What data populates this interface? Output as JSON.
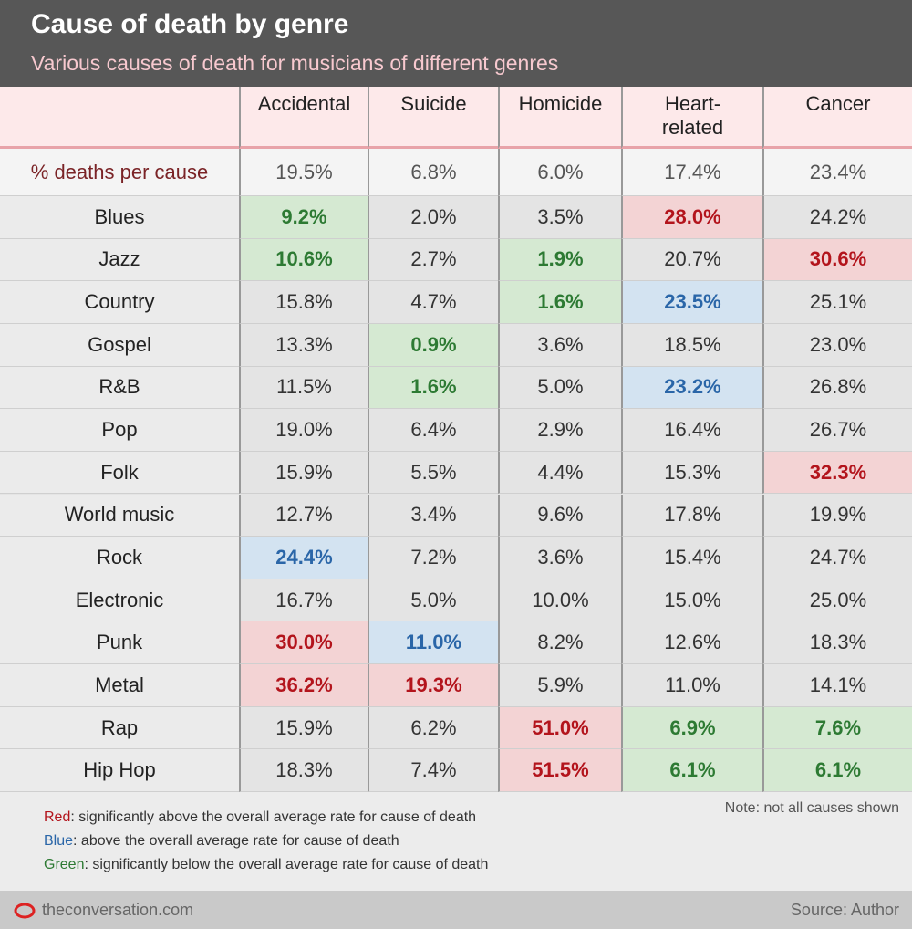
{
  "header": {
    "title": "Cause of death by genre",
    "subtitle": "Various causes of death for musicians of different genres"
  },
  "table": {
    "columns": [
      "Accidental",
      "Suicide",
      "Homicide",
      "Heart-\nrelated",
      "Cancer"
    ],
    "average": {
      "label": "% deaths per cause",
      "values": [
        "19.5%",
        "6.8%",
        "6.0%",
        "17.4%",
        "23.4%"
      ]
    },
    "rows": [
      {
        "genre": "Blues",
        "values": [
          "9.2%",
          "2.0%",
          "3.5%",
          "28.0%",
          "24.2%"
        ],
        "highlight": [
          "green",
          null,
          null,
          "red",
          null
        ]
      },
      {
        "genre": "Jazz",
        "values": [
          "10.6%",
          "2.7%",
          "1.9%",
          "20.7%",
          "30.6%"
        ],
        "highlight": [
          "green",
          null,
          "green",
          null,
          "red"
        ]
      },
      {
        "genre": "Country",
        "values": [
          "15.8%",
          "4.7%",
          "1.6%",
          "23.5%",
          "25.1%"
        ],
        "highlight": [
          null,
          null,
          "green",
          "blue",
          null
        ]
      },
      {
        "genre": "Gospel",
        "values": [
          "13.3%",
          "0.9%",
          "3.6%",
          "18.5%",
          "23.0%"
        ],
        "highlight": [
          null,
          "green",
          null,
          null,
          null
        ]
      },
      {
        "genre": "R&B",
        "values": [
          "11.5%",
          "1.6%",
          "5.0%",
          "23.2%",
          "26.8%"
        ],
        "highlight": [
          null,
          "green",
          null,
          "blue",
          null
        ]
      },
      {
        "genre": "Pop",
        "values": [
          "19.0%",
          "6.4%",
          "2.9%",
          "16.4%",
          "26.7%"
        ],
        "highlight": [
          null,
          null,
          null,
          null,
          null
        ]
      },
      {
        "genre": "Folk",
        "values": [
          "15.9%",
          "5.5%",
          "4.4%",
          "15.3%",
          "32.3%"
        ],
        "highlight": [
          null,
          null,
          null,
          null,
          "red"
        ]
      },
      {
        "genre": "World music",
        "values": [
          "12.7%",
          "3.4%",
          "9.6%",
          "17.8%",
          "19.9%"
        ],
        "highlight": [
          null,
          null,
          null,
          null,
          null
        ]
      },
      {
        "genre": "Rock",
        "values": [
          "24.4%",
          "7.2%",
          "3.6%",
          "15.4%",
          "24.7%"
        ],
        "highlight": [
          "blue",
          null,
          null,
          null,
          null
        ]
      },
      {
        "genre": "Electronic",
        "values": [
          "16.7%",
          "5.0%",
          "10.0%",
          "15.0%",
          "25.0%"
        ],
        "highlight": [
          null,
          null,
          null,
          null,
          null
        ]
      },
      {
        "genre": "Punk",
        "values": [
          "30.0%",
          "11.0%",
          "8.2%",
          "12.6%",
          "18.3%"
        ],
        "highlight": [
          "red",
          "blue",
          null,
          null,
          null
        ]
      },
      {
        "genre": "Metal",
        "values": [
          "36.2%",
          "19.3%",
          "5.9%",
          "11.0%",
          "14.1%"
        ],
        "highlight": [
          "red",
          "red",
          null,
          null,
          null
        ]
      },
      {
        "genre": "Rap",
        "values": [
          "15.9%",
          "6.2%",
          "51.0%",
          "6.9%",
          "7.6%"
        ],
        "highlight": [
          null,
          null,
          "red",
          "green",
          "green"
        ]
      },
      {
        "genre": "Hip Hop",
        "values": [
          "18.3%",
          "7.4%",
          "51.5%",
          "6.1%",
          "6.1%"
        ],
        "highlight": [
          null,
          null,
          "red",
          "green",
          "green"
        ]
      }
    ]
  },
  "legend": [
    {
      "key": "Red",
      "text": ": significantly above the overall average rate for cause of death",
      "color": "red"
    },
    {
      "key": "Blue",
      "text": ": above the overall average rate for cause of death",
      "color": "blue"
    },
    {
      "key": "Green",
      "text": ": significantly below the overall average rate for cause of death",
      "color": "green"
    }
  ],
  "note": "Note: not all causes shown",
  "footer": {
    "site": "theconversation.com",
    "source": "Source: Author"
  }
}
